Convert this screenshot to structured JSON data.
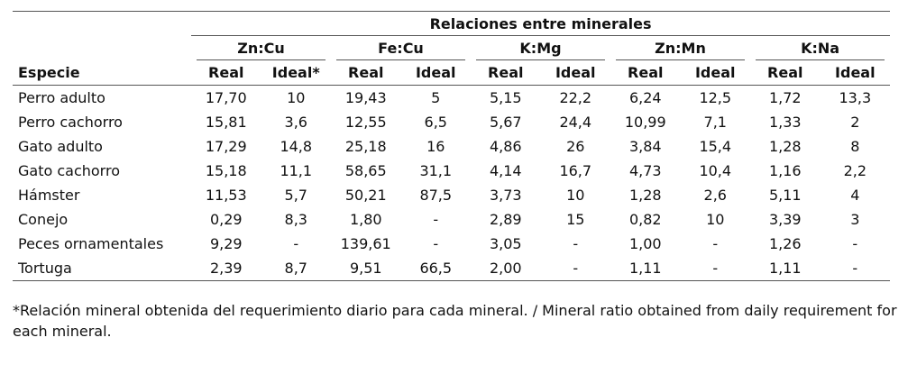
{
  "table": {
    "group_header": "Relaciones entre minerales",
    "species_header": "Especie",
    "pairs": [
      {
        "name": "Zn:Cu",
        "columns": [
          "Real",
          "Ideal*"
        ]
      },
      {
        "name": "Fe:Cu",
        "columns": [
          "Real",
          "Ideal"
        ]
      },
      {
        "name": "K:Mg",
        "columns": [
          "Real",
          "Ideal"
        ]
      },
      {
        "name": "Zn:Mn",
        "columns": [
          "Real",
          "Ideal"
        ]
      },
      {
        "name": "K:Na",
        "columns": [
          "Real",
          "Ideal"
        ]
      }
    ],
    "rows": [
      [
        "Perro adulto",
        "17,70",
        "10",
        "19,43",
        "5",
        "5,15",
        "22,2",
        "6,24",
        "12,5",
        "1,72",
        "13,3"
      ],
      [
        "Perro cachorro",
        "15,81",
        "3,6",
        "12,55",
        "6,5",
        "5,67",
        "24,4",
        "10,99",
        "7,1",
        "1,33",
        "2"
      ],
      [
        "Gato adulto",
        "17,29",
        "14,8",
        "25,18",
        "16",
        "4,86",
        "26",
        "3,84",
        "15,4",
        "1,28",
        "8"
      ],
      [
        "Gato cachorro",
        "15,18",
        "11,1",
        "58,65",
        "31,1",
        "4,14",
        "16,7",
        "4,73",
        "10,4",
        "1,16",
        "2,2"
      ],
      [
        "Hámster",
        "11,53",
        "5,7",
        "50,21",
        "87,5",
        "3,73",
        "10",
        "1,28",
        "2,6",
        "5,11",
        "4"
      ],
      [
        "Conejo",
        "0,29",
        "8,3",
        "1,80",
        "-",
        "2,89",
        "15",
        "0,82",
        "10",
        "3,39",
        "3"
      ],
      [
        "Peces ornamentales",
        "9,29",
        "-",
        "139,61",
        "-",
        "3,05",
        "-",
        "1,00",
        "-",
        "1,26",
        "-"
      ],
      [
        "Tortuga",
        "2,39",
        "8,7",
        "9,51",
        "66,5",
        "2,00",
        "-",
        "1,11",
        "-",
        "1,11",
        "-"
      ]
    ]
  },
  "footnote": "*Relación mineral obtenida del requerimiento diario para cada mineral. / Mineral ratio obtained from daily requirement for each mineral."
}
